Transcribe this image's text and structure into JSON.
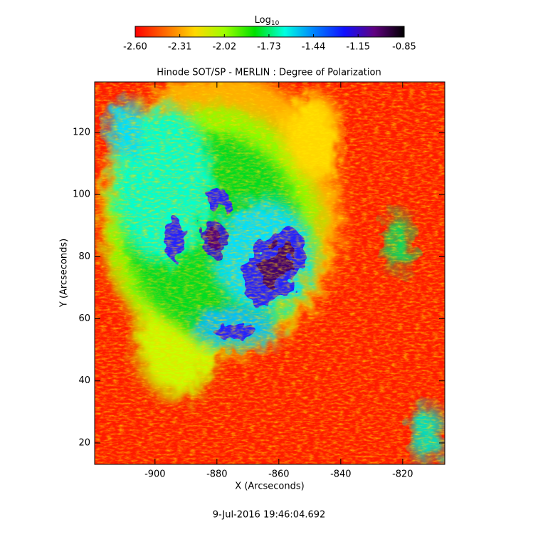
{
  "chart_data": {
    "type": "heatmap",
    "title": "Hinode SOT/SP - MERLIN : Degree of Polarization",
    "x_label": "X (Arcseconds)",
    "y_label": "Y (Arcseconds)",
    "footer": "9-Jul-2016 19:46:04.692",
    "colorbar_label": "Log",
    "colorbar_label_subscript": "10",
    "colormap": [
      "#ff0000",
      "#ff6a00",
      "#ffd800",
      "#9cff00",
      "#00e000",
      "#00ffe0",
      "#0080ff",
      "#1010ff",
      "#600080",
      "#000000"
    ],
    "clim": [
      -2.6,
      -0.85
    ],
    "colorbar_ticks": [
      {
        "value": -2.6,
        "label": "-2.60"
      },
      {
        "value": -2.31,
        "label": "-2.31"
      },
      {
        "value": -2.02,
        "label": "-2.02"
      },
      {
        "value": -1.73,
        "label": "-1.73"
      },
      {
        "value": -1.44,
        "label": "-1.44"
      },
      {
        "value": -1.15,
        "label": "-1.15"
      },
      {
        "value": -0.85,
        "label": "-0.85"
      }
    ],
    "xlim": [
      -919.5,
      -806.4
    ],
    "xticks": [
      -900,
      -880,
      -860,
      -840,
      -820
    ],
    "ylim": [
      13.1,
      136.3
    ],
    "yticks": [
      20,
      40,
      60,
      80,
      100,
      120
    ]
  }
}
